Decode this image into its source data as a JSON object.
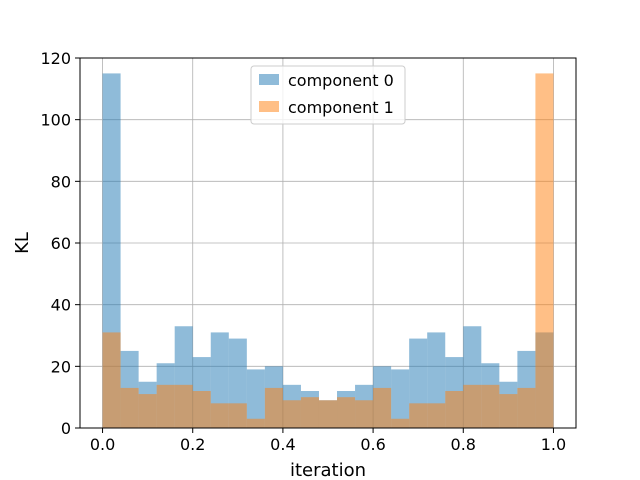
{
  "chart_data": {
    "type": "bar",
    "title": "",
    "xlabel": "iteration",
    "ylabel": "KL",
    "xlim": [
      -0.05,
      1.05
    ],
    "ylim": [
      0,
      120
    ],
    "xticks": [
      0.0,
      0.2,
      0.4,
      0.6,
      0.8,
      1.0
    ],
    "xtick_labels": [
      "0.0",
      "0.2",
      "0.4",
      "0.6",
      "0.8",
      "1.0"
    ],
    "yticks": [
      0,
      20,
      40,
      60,
      80,
      100,
      120
    ],
    "ytick_labels": [
      "0",
      "20",
      "40",
      "60",
      "80",
      "100",
      "120"
    ],
    "grid": true,
    "legend_position": "top-center",
    "bin_start": 0.0,
    "bin_width": 0.04,
    "series": [
      {
        "name": "component 0",
        "color": "#1f77b4",
        "values": [
          115,
          25,
          15,
          21,
          33,
          23,
          31,
          29,
          19,
          20,
          14,
          12,
          9,
          12,
          14,
          20,
          19,
          29,
          31,
          23,
          33,
          21,
          15,
          25,
          31
        ]
      },
      {
        "name": "component 1",
        "color": "#ff7f0e",
        "values": [
          31,
          13,
          11,
          14,
          14,
          12,
          8,
          8,
          3,
          13,
          9,
          10,
          9,
          10,
          9,
          13,
          3,
          8,
          8,
          12,
          14,
          14,
          11,
          13,
          115
        ]
      }
    ]
  }
}
